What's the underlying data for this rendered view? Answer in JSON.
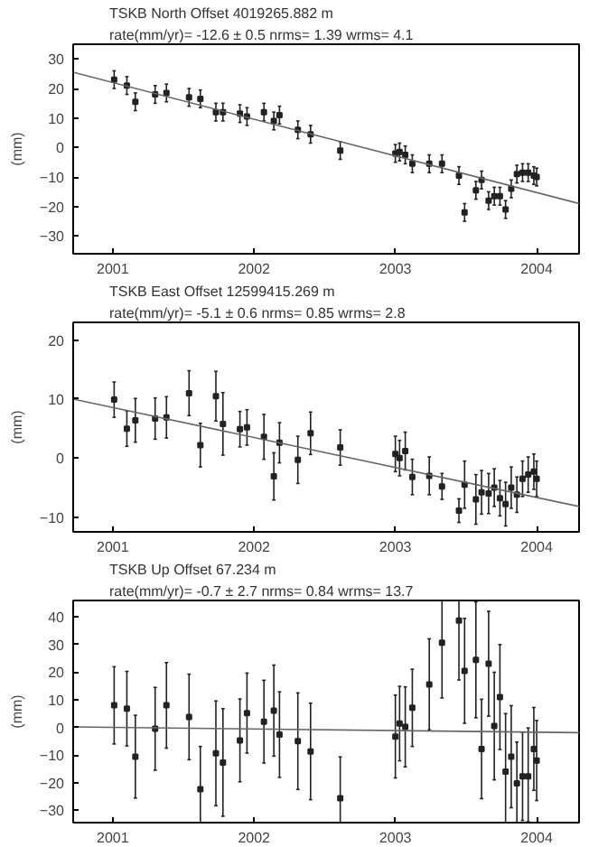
{
  "chart_data": [
    {
      "type": "scatter",
      "title": "TSKB  North Offset  4019265.882 m",
      "subtitle": "rate(mm/yr)=   -12.6 ±  0.5  nrms=  1.39  wrms=   4.1",
      "ylabel": "(mm)",
      "xlim": [
        2000.72,
        2004.3
      ],
      "ylim": [
        -36,
        35
      ],
      "xticks": [
        2001,
        2002,
        2003,
        2004
      ],
      "yticks": [
        -30,
        -20,
        -10,
        0,
        10,
        20,
        30
      ],
      "grid": false,
      "series": [
        {
          "color": "#222222",
          "marker": "square",
          "x": [
            2001.01,
            2001.1,
            2001.16,
            2001.3,
            2001.38,
            2001.54,
            2001.62,
            2001.73,
            2001.78,
            2001.9,
            2001.95,
            2002.07,
            2002.14,
            2002.18,
            2002.31,
            2002.4,
            2002.61,
            2003.0,
            2003.03,
            2003.07,
            2003.12,
            2003.24,
            2003.33,
            2003.45,
            2003.49,
            2003.57,
            2003.61,
            2003.66,
            2003.7,
            2003.74,
            2003.78,
            2003.82,
            2003.86,
            2003.9,
            2003.94,
            2003.98,
            2004.0
          ],
          "values": [
            23,
            21,
            15.5,
            18,
            18.5,
            17,
            16.5,
            12,
            12,
            11.5,
            10.5,
            12,
            9,
            11,
            6,
            4.5,
            -1,
            -2,
            -1.5,
            -2.5,
            -5.5,
            -5.5,
            -5.5,
            -9.5,
            -22,
            -14.5,
            -11,
            -18,
            -16.5,
            -16.5,
            -21,
            -14,
            -9,
            -8.5,
            -8.5,
            -9.5,
            -10
          ],
          "errors": [
            3,
            3,
            3,
            3,
            3,
            3,
            3,
            3,
            3,
            3,
            3,
            3,
            3,
            3,
            3,
            3,
            3,
            3,
            3,
            3,
            3,
            3,
            3,
            3,
            3,
            3,
            3,
            3,
            3,
            3,
            3,
            3,
            3,
            3,
            3,
            3,
            3
          ]
        },
        {
          "type": "line",
          "color": "#666666",
          "x": [
            2000.72,
            2004.3
          ],
          "values": [
            25.5,
            -19
          ]
        }
      ]
    },
    {
      "type": "scatter",
      "title": "TSKB  East Offset  12599415.269 m",
      "subtitle": "rate(mm/yr)=    -5.1 ±  0.6  nrms=  0.85  wrms=   2.8",
      "ylabel": "(mm)",
      "xlim": [
        2000.72,
        2004.3
      ],
      "ylim": [
        -12.5,
        23
      ],
      "xticks": [
        2001,
        2002,
        2003,
        2004
      ],
      "yticks": [
        -10,
        0,
        10,
        20
      ],
      "grid": false,
      "series": [
        {
          "color": "#222222",
          "marker": "square",
          "x": [
            2001.01,
            2001.1,
            2001.16,
            2001.3,
            2001.38,
            2001.54,
            2001.62,
            2001.73,
            2001.78,
            2001.9,
            2001.95,
            2002.07,
            2002.14,
            2002.18,
            2002.31,
            2002.4,
            2002.61,
            2003.0,
            2003.03,
            2003.07,
            2003.12,
            2003.24,
            2003.33,
            2003.45,
            2003.49,
            2003.57,
            2003.61,
            2003.66,
            2003.7,
            2003.74,
            2003.78,
            2003.82,
            2003.86,
            2003.9,
            2003.94,
            2003.98,
            2004.0
          ],
          "values": [
            9.9,
            5,
            6.4,
            6.7,
            6.9,
            11,
            2.2,
            10.5,
            5.8,
            4.9,
            5.2,
            3.6,
            -3.1,
            2.6,
            -0.3,
            4.2,
            1.8,
            0.7,
            0,
            1.2,
            -3.2,
            -3,
            -4.8,
            -8.9,
            -4.5,
            -7,
            -5.8,
            -6,
            -5,
            -6.8,
            -7.8,
            -5,
            -6.2,
            -3.5,
            -2.8,
            -2.3,
            -3.5
          ],
          "errors": [
            3,
            3,
            3.7,
            3.5,
            3.5,
            3.8,
            3.7,
            4.2,
            5.3,
            3,
            3,
            3.8,
            4,
            3.4,
            4,
            3.6,
            3,
            3,
            3,
            3.2,
            3,
            3.2,
            2.2,
            2,
            4,
            4.2,
            3.7,
            3.4,
            3.2,
            3,
            3.7,
            3.5,
            3,
            3,
            3,
            3,
            3
          ]
        },
        {
          "type": "line",
          "color": "#666666",
          "x": [
            2000.72,
            2004.3
          ],
          "values": [
            10,
            -8.2
          ]
        }
      ]
    },
    {
      "type": "scatter",
      "title": "TSKB  Up Offset       67.234 m",
      "subtitle": "rate(mm/yr)=    -0.7 ±  2.7  nrms=  0.84  wrms=  13.7",
      "ylabel": "(mm)",
      "xlim": [
        2000.72,
        2004.3
      ],
      "ylim": [
        -34.5,
        46
      ],
      "xticks": [
        2001,
        2002,
        2003,
        2004
      ],
      "yticks": [
        -30,
        -20,
        -10,
        0,
        10,
        20,
        30,
        40
      ],
      "grid": false,
      "series": [
        {
          "color": "#222222",
          "marker": "square",
          "x": [
            2001.01,
            2001.1,
            2001.16,
            2001.3,
            2001.38,
            2001.54,
            2001.62,
            2001.73,
            2001.78,
            2001.9,
            2001.95,
            2002.07,
            2002.14,
            2002.18,
            2002.31,
            2002.4,
            2002.61,
            2003.0,
            2003.03,
            2003.07,
            2003.12,
            2003.24,
            2003.33,
            2003.45,
            2003.49,
            2003.57,
            2003.61,
            2003.66,
            2003.7,
            2003.74,
            2003.78,
            2003.82,
            2003.86,
            2003.9,
            2003.94,
            2003.98,
            2004.0
          ],
          "values": [
            8,
            6.8,
            -10.6,
            -0.5,
            8,
            3.8,
            -22.4,
            -9.4,
            -12.7,
            -4.7,
            5.2,
            2.1,
            6.1,
            -2.6,
            -5,
            -8.7,
            -25.7,
            -3.3,
            1.4,
            0.2,
            7.1,
            15.6,
            30.7,
            38.7,
            20.5,
            24.5,
            -7.8,
            23.1,
            0.5,
            11,
            -16,
            -10.6,
            -20.3,
            -17.7,
            -17.7,
            -7.8,
            -12
          ],
          "errors": [
            14,
            13.5,
            15,
            15,
            15.5,
            15.5,
            [
              -34.5,
              -6.9
            ],
            19,
            19.5,
            15,
            14.5,
            15,
            16.5,
            15.5,
            17.5,
            17.5,
            [
              -34.5,
              -10.7
            ],
            15,
            13.5,
            14.5,
            14,
            16.5,
            [
              10.7,
              46
            ],
            [
              17.2,
              46
            ],
            19,
            21,
            18,
            19,
            19.5,
            19,
            [
              -34.5,
              5
            ],
            18.5,
            [
              -34.5,
              -5.3
            ],
            16,
            [
              -34.2,
              -0.2
            ],
            15,
            14.5
          ]
        },
        {
          "type": "line",
          "color": "#666666",
          "x": [
            2000.72,
            2004.3
          ],
          "values": [
            0.2,
            -1.9
          ]
        }
      ]
    }
  ]
}
